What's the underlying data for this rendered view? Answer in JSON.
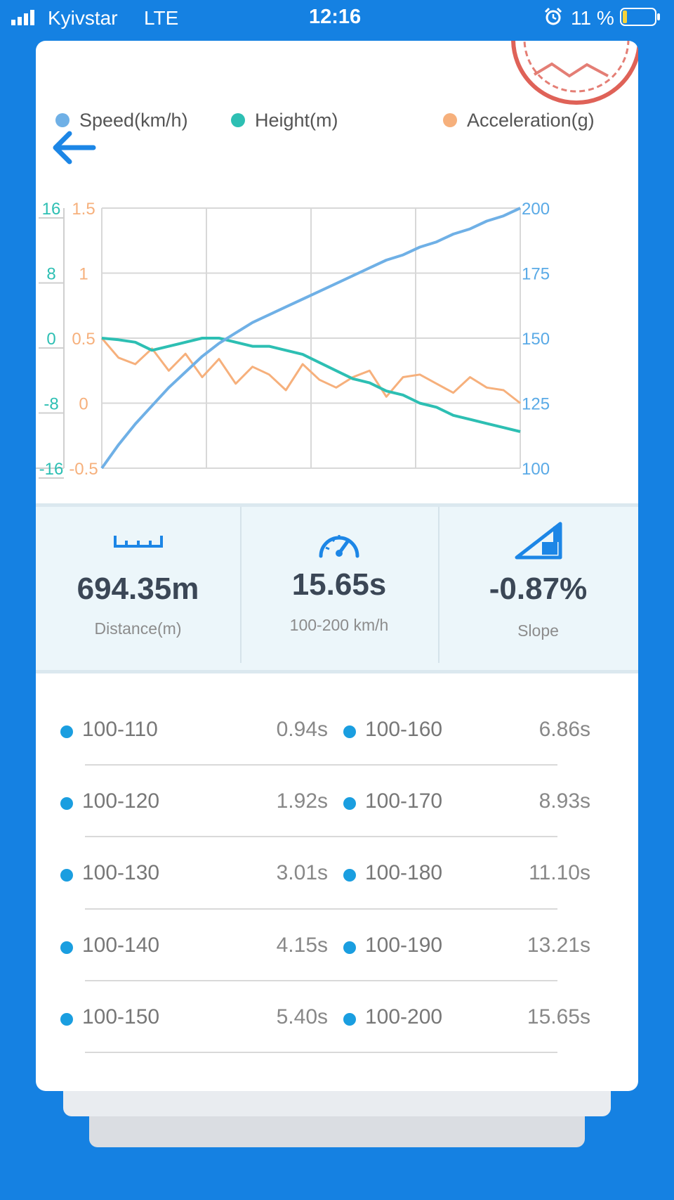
{
  "status_bar": {
    "carrier": "Kyivstar",
    "network": "LTE",
    "time": "12:16",
    "battery": "11 %"
  },
  "legend": [
    {
      "label": "Speed(km/h)",
      "color": "#6fb0e6"
    },
    {
      "label": "Height(m)",
      "color": "#2dbfb3"
    },
    {
      "label": "Acceleration(g)",
      "color": "#f6b07c"
    }
  ],
  "chart_data": {
    "type": "line",
    "x": "time",
    "grid": true,
    "axes": {
      "height_axis": {
        "side": "left-outer",
        "ticks": [
          "16",
          "8",
          "0",
          "-8",
          "-16"
        ],
        "range": [
          -16,
          16
        ],
        "color": "#2dbfb3"
      },
      "acceleration_axis": {
        "side": "left-inner",
        "ticks": [
          "1.5",
          "1",
          "0.5",
          "0",
          "-0.5"
        ],
        "range": [
          -0.5,
          1.5
        ],
        "color": "#f6b07c"
      },
      "speed_axis": {
        "side": "right",
        "ticks": [
          "200",
          "175",
          "150",
          "125",
          "100"
        ],
        "range": [
          100,
          200
        ],
        "color": "#5aaae6"
      }
    },
    "series": [
      {
        "name": "Speed(km/h)",
        "axis": "speed_axis",
        "color": "#6fb0e6",
        "values": [
          100,
          109,
          117,
          124,
          131,
          137,
          143,
          148,
          152,
          156,
          159,
          162,
          165,
          168,
          171,
          174,
          177,
          180,
          182,
          185,
          187,
          190,
          192,
          195,
          197,
          200
        ]
      },
      {
        "name": "Height(m)",
        "axis": "height_axis",
        "color": "#2dbfb3",
        "values": [
          0,
          -0.2,
          -0.5,
          -1.5,
          -1,
          -0.5,
          0,
          0,
          -0.5,
          -1,
          -1,
          -1.5,
          -2,
          -3,
          -4,
          -5,
          -5.5,
          -6.5,
          -7,
          -8,
          -8.5,
          -9.5,
          -10,
          -10.5,
          -11,
          -11.5
        ]
      },
      {
        "name": "Acceleration(g)",
        "color": "#f6b07c",
        "axis": "acceleration_axis",
        "values": [
          0.5,
          0.35,
          0.3,
          0.42,
          0.25,
          0.38,
          0.2,
          0.34,
          0.15,
          0.28,
          0.22,
          0.1,
          0.3,
          0.18,
          0.12,
          0.2,
          0.25,
          0.05,
          0.2,
          0.22,
          0.15,
          0.08,
          0.2,
          0.12,
          0.1,
          0.0
        ]
      }
    ]
  },
  "stats": [
    {
      "value": "694.35m",
      "label": "Distance(m)",
      "icon": "ruler-icon"
    },
    {
      "value": "15.65s",
      "label": "100-200 km/h",
      "icon": "speedometer-icon"
    },
    {
      "value": "-0.87%",
      "label": "Slope",
      "icon": "slope-icon"
    }
  ],
  "splits": [
    {
      "left_label": "100-110",
      "left_time": "0.94s",
      "right_label": "100-160",
      "right_time": "6.86s"
    },
    {
      "left_label": "100-120",
      "left_time": "1.92s",
      "right_label": "100-170",
      "right_time": "8.93s"
    },
    {
      "left_label": "100-130",
      "left_time": "3.01s",
      "right_label": "100-180",
      "right_time": "11.10s"
    },
    {
      "left_label": "100-140",
      "left_time": "4.15s",
      "right_label": "100-190",
      "right_time": "13.21s"
    },
    {
      "left_label": "100-150",
      "left_time": "5.40s",
      "right_label": "100-200",
      "right_time": "15.65s"
    }
  ]
}
